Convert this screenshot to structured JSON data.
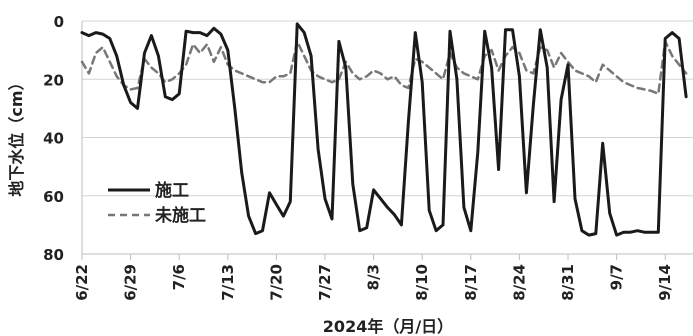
{
  "chart_data": {
    "type": "line",
    "xlabel": "2024年（月/日）",
    "ylabel": "地下水位（cm）",
    "x_axis": "date",
    "xlim": [
      "2024-06-22",
      "2024-09-18"
    ],
    "ylim": [
      0,
      80
    ],
    "y_inverted": true,
    "yticks": [
      0,
      20,
      40,
      60,
      80
    ],
    "xticks": [
      {
        "date": "2024-06-22",
        "label": "6/22"
      },
      {
        "date": "2024-06-29",
        "label": "6/29"
      },
      {
        "date": "2024-07-06",
        "label": "7/6"
      },
      {
        "date": "2024-07-13",
        "label": "7/13"
      },
      {
        "date": "2024-07-20",
        "label": "7/20"
      },
      {
        "date": "2024-07-27",
        "label": "7/27"
      },
      {
        "date": "2024-08-03",
        "label": "8/3"
      },
      {
        "date": "2024-08-10",
        "label": "8/10"
      },
      {
        "date": "2024-08-17",
        "label": "8/17"
      },
      {
        "date": "2024-08-24",
        "label": "8/24"
      },
      {
        "date": "2024-08-31",
        "label": "8/31"
      },
      {
        "date": "2024-09-07",
        "label": "9/7"
      },
      {
        "date": "2024-09-14",
        "label": "9/14"
      }
    ],
    "grid": "horizontal",
    "legend_position": "bottom-left",
    "series": [
      {
        "name": "施工",
        "color": "#1a1a1a",
        "dash": "solid",
        "points": [
          [
            "2024-06-22",
            4
          ],
          [
            "2024-06-23",
            5
          ],
          [
            "2024-06-24",
            4
          ],
          [
            "2024-06-25",
            4.5
          ],
          [
            "2024-06-26",
            6
          ],
          [
            "2024-06-27",
            12
          ],
          [
            "2024-06-28",
            22
          ],
          [
            "2024-06-29",
            28
          ],
          [
            "2024-06-30",
            30
          ],
          [
            "2024-07-01",
            11
          ],
          [
            "2024-07-02",
            5
          ],
          [
            "2024-07-03",
            12
          ],
          [
            "2024-07-04",
            26
          ],
          [
            "2024-07-05",
            27
          ],
          [
            "2024-07-06",
            25
          ],
          [
            "2024-07-07",
            3.5
          ],
          [
            "2024-07-08",
            4
          ],
          [
            "2024-07-09",
            4
          ],
          [
            "2024-07-10",
            5
          ],
          [
            "2024-07-11",
            2.5
          ],
          [
            "2024-07-12",
            4.5
          ],
          [
            "2024-07-13",
            10
          ],
          [
            "2024-07-14",
            30
          ],
          [
            "2024-07-15",
            52
          ],
          [
            "2024-07-16",
            67
          ],
          [
            "2024-07-17",
            73
          ],
          [
            "2024-07-18",
            72
          ],
          [
            "2024-07-19",
            59
          ],
          [
            "2024-07-20",
            63
          ],
          [
            "2024-07-21",
            67
          ],
          [
            "2024-07-22",
            62
          ],
          [
            "2024-07-23",
            1
          ],
          [
            "2024-07-24",
            4
          ],
          [
            "2024-07-25",
            12
          ],
          [
            "2024-07-26",
            44
          ],
          [
            "2024-07-27",
            61
          ],
          [
            "2024-07-28",
            68
          ],
          [
            "2024-07-29",
            7
          ],
          [
            "2024-07-30",
            16
          ],
          [
            "2024-07-31",
            56
          ],
          [
            "2024-08-01",
            72
          ],
          [
            "2024-08-02",
            71
          ],
          [
            "2024-08-03",
            58
          ],
          [
            "2024-08-04",
            61
          ],
          [
            "2024-08-05",
            64
          ],
          [
            "2024-08-06",
            66.5
          ],
          [
            "2024-08-07",
            70
          ],
          [
            "2024-08-08",
            35
          ],
          [
            "2024-08-09",
            4
          ],
          [
            "2024-08-10",
            21
          ],
          [
            "2024-08-11",
            65
          ],
          [
            "2024-08-12",
            72
          ],
          [
            "2024-08-13",
            70
          ],
          [
            "2024-08-14",
            3.5
          ],
          [
            "2024-08-15",
            20
          ],
          [
            "2024-08-16",
            64
          ],
          [
            "2024-08-17",
            72
          ],
          [
            "2024-08-18",
            45
          ],
          [
            "2024-08-19",
            3.5
          ],
          [
            "2024-08-20",
            16
          ],
          [
            "2024-08-21",
            51
          ],
          [
            "2024-08-22",
            3
          ],
          [
            "2024-08-23",
            3
          ],
          [
            "2024-08-24",
            19
          ],
          [
            "2024-08-25",
            59
          ],
          [
            "2024-08-26",
            29
          ],
          [
            "2024-08-27",
            3
          ],
          [
            "2024-08-28",
            16
          ],
          [
            "2024-08-29",
            62
          ],
          [
            "2024-08-30",
            27
          ],
          [
            "2024-08-31",
            15
          ],
          [
            "2024-09-01",
            61
          ],
          [
            "2024-09-02",
            72
          ],
          [
            "2024-09-03",
            73.5
          ],
          [
            "2024-09-04",
            73
          ],
          [
            "2024-09-05",
            42
          ],
          [
            "2024-09-06",
            66
          ],
          [
            "2024-09-07",
            73.5
          ],
          [
            "2024-09-08",
            72.5
          ],
          [
            "2024-09-09",
            72.5
          ],
          [
            "2024-09-10",
            72
          ],
          [
            "2024-09-11",
            72.5
          ],
          [
            "2024-09-12",
            72.5
          ],
          [
            "2024-09-13",
            72.5
          ],
          [
            "2024-09-14",
            6
          ],
          [
            "2024-09-15",
            4
          ],
          [
            "2024-09-16",
            6
          ],
          [
            "2024-09-17",
            26
          ]
        ]
      },
      {
        "name": "未施工",
        "color": "#777777",
        "dash": "dashed",
        "points": [
          [
            "2024-06-22",
            14
          ],
          [
            "2024-06-23",
            18
          ],
          [
            "2024-06-24",
            11
          ],
          [
            "2024-06-25",
            9
          ],
          [
            "2024-06-26",
            14
          ],
          [
            "2024-06-27",
            19
          ],
          [
            "2024-06-28",
            22
          ],
          [
            "2024-06-29",
            23.5
          ],
          [
            "2024-06-30",
            23
          ],
          [
            "2024-07-01",
            13
          ],
          [
            "2024-07-02",
            16
          ],
          [
            "2024-07-03",
            18
          ],
          [
            "2024-07-04",
            21
          ],
          [
            "2024-07-05",
            20
          ],
          [
            "2024-07-06",
            18
          ],
          [
            "2024-07-07",
            15
          ],
          [
            "2024-07-08",
            8
          ],
          [
            "2024-07-09",
            11
          ],
          [
            "2024-07-10",
            8
          ],
          [
            "2024-07-11",
            14
          ],
          [
            "2024-07-12",
            9
          ],
          [
            "2024-07-13",
            15
          ],
          [
            "2024-07-14",
            17
          ],
          [
            "2024-07-15",
            18
          ],
          [
            "2024-07-16",
            19
          ],
          [
            "2024-07-17",
            20
          ],
          [
            "2024-07-18",
            21
          ],
          [
            "2024-07-19",
            21
          ],
          [
            "2024-07-20",
            19
          ],
          [
            "2024-07-21",
            19
          ],
          [
            "2024-07-22",
            18
          ],
          [
            "2024-07-23",
            7
          ],
          [
            "2024-07-24",
            12
          ],
          [
            "2024-07-25",
            17
          ],
          [
            "2024-07-26",
            19
          ],
          [
            "2024-07-27",
            20
          ],
          [
            "2024-07-28",
            21
          ],
          [
            "2024-07-29",
            20
          ],
          [
            "2024-07-30",
            14
          ],
          [
            "2024-07-31",
            18
          ],
          [
            "2024-08-01",
            20
          ],
          [
            "2024-08-02",
            19
          ],
          [
            "2024-08-03",
            17
          ],
          [
            "2024-08-04",
            18
          ],
          [
            "2024-08-05",
            20
          ],
          [
            "2024-08-06",
            19
          ],
          [
            "2024-08-07",
            22
          ],
          [
            "2024-08-08",
            23
          ],
          [
            "2024-08-09",
            13
          ],
          [
            "2024-08-10",
            14
          ],
          [
            "2024-08-11",
            16
          ],
          [
            "2024-08-12",
            18
          ],
          [
            "2024-08-13",
            20
          ],
          [
            "2024-08-14",
            11
          ],
          [
            "2024-08-15",
            16
          ],
          [
            "2024-08-16",
            18
          ],
          [
            "2024-08-17",
            19
          ],
          [
            "2024-08-18",
            20
          ],
          [
            "2024-08-19",
            12
          ],
          [
            "2024-08-20",
            10
          ],
          [
            "2024-08-21",
            17
          ],
          [
            "2024-08-22",
            12
          ],
          [
            "2024-08-23",
            9
          ],
          [
            "2024-08-24",
            11
          ],
          [
            "2024-08-25",
            17
          ],
          [
            "2024-08-26",
            18
          ],
          [
            "2024-08-27",
            9
          ],
          [
            "2024-08-28",
            10
          ],
          [
            "2024-08-29",
            16
          ],
          [
            "2024-08-30",
            11
          ],
          [
            "2024-08-31",
            14
          ],
          [
            "2024-09-01",
            17
          ],
          [
            "2024-09-02",
            18
          ],
          [
            "2024-09-03",
            19
          ],
          [
            "2024-09-04",
            21
          ],
          [
            "2024-09-05",
            15
          ],
          [
            "2024-09-06",
            17
          ],
          [
            "2024-09-07",
            19
          ],
          [
            "2024-09-08",
            21
          ],
          [
            "2024-09-09",
            22
          ],
          [
            "2024-09-10",
            23
          ],
          [
            "2024-09-11",
            23.5
          ],
          [
            "2024-09-12",
            24
          ],
          [
            "2024-09-13",
            25
          ],
          [
            "2024-09-14",
            7
          ],
          [
            "2024-09-15",
            12
          ],
          [
            "2024-09-16",
            15
          ],
          [
            "2024-09-17",
            18
          ]
        ]
      }
    ]
  }
}
